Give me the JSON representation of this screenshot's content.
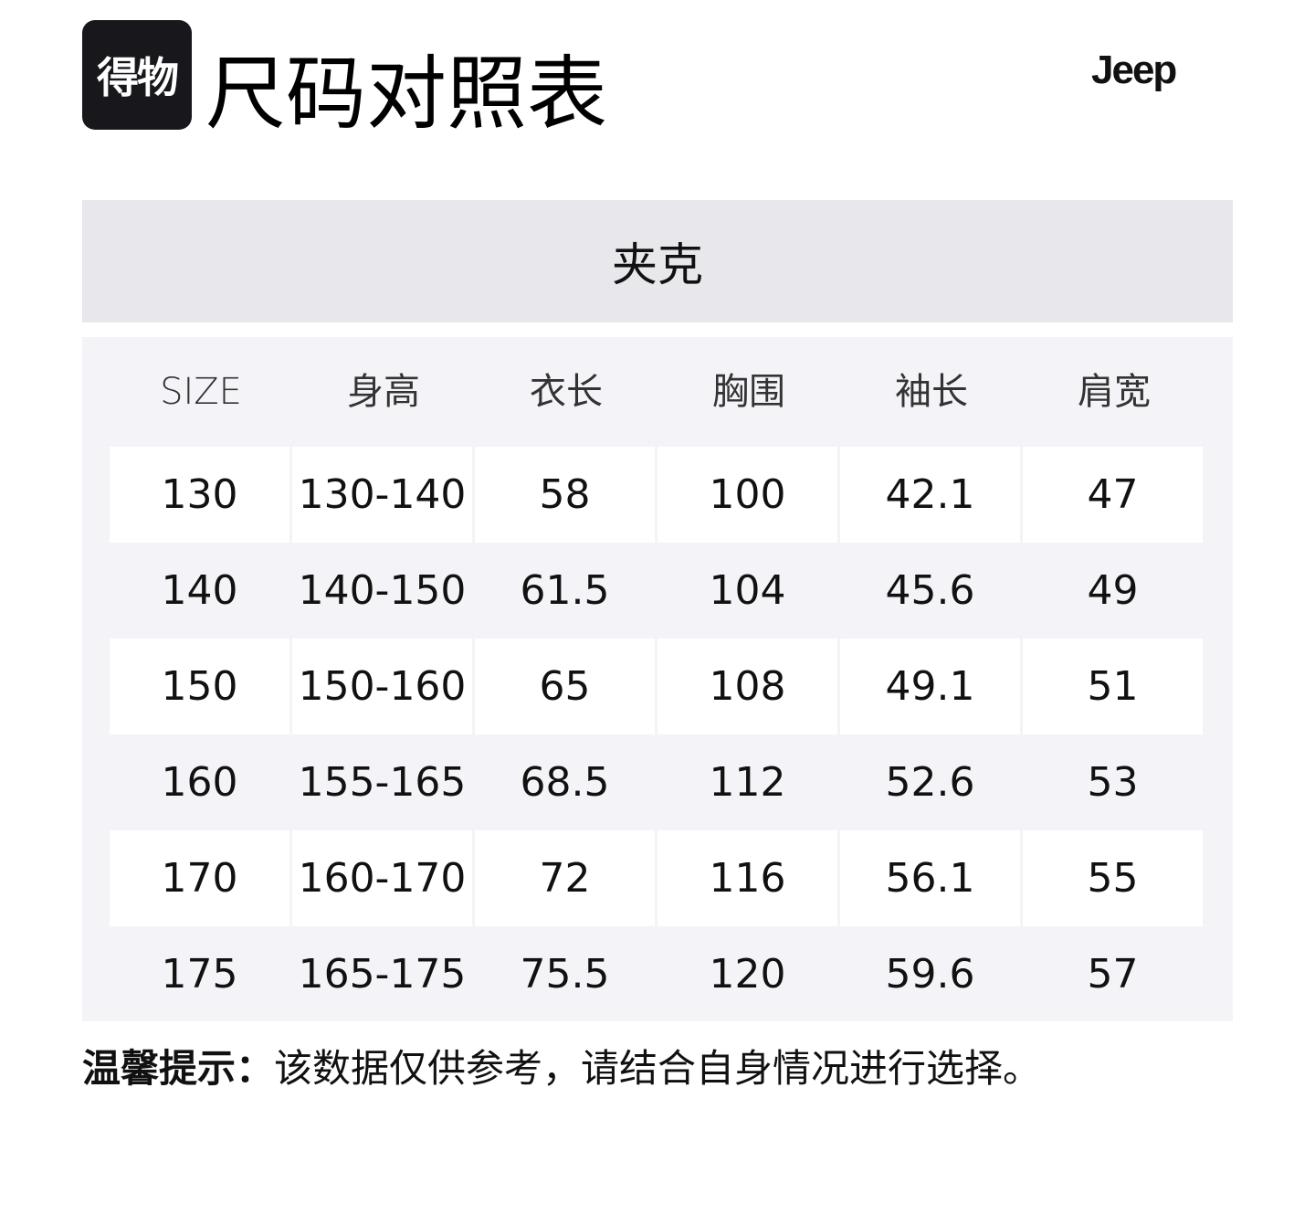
{
  "logo": {
    "text": "得物"
  },
  "title": "尺码对照表",
  "brand": "Jeep",
  "category": "夹克",
  "table": {
    "headers": [
      "SIZE",
      "身高",
      "衣长",
      "胸围",
      "袖长",
      "肩宽"
    ],
    "rows": [
      [
        "130",
        "130-140",
        "58",
        "100",
        "42.1",
        "47"
      ],
      [
        "140",
        "140-150",
        "61.5",
        "104",
        "45.6",
        "49"
      ],
      [
        "150",
        "150-160",
        "65",
        "108",
        "49.1",
        "51"
      ],
      [
        "160",
        "155-165",
        "68.5",
        "112",
        "52.6",
        "53"
      ],
      [
        "170",
        "160-170",
        "72",
        "116",
        "56.1",
        "55"
      ],
      [
        "175",
        "165-175",
        "75.5",
        "120",
        "59.6",
        "57"
      ]
    ]
  },
  "note": {
    "label": "温馨提示：",
    "text": "该数据仅供参考，请结合自身情况进行选择。"
  }
}
